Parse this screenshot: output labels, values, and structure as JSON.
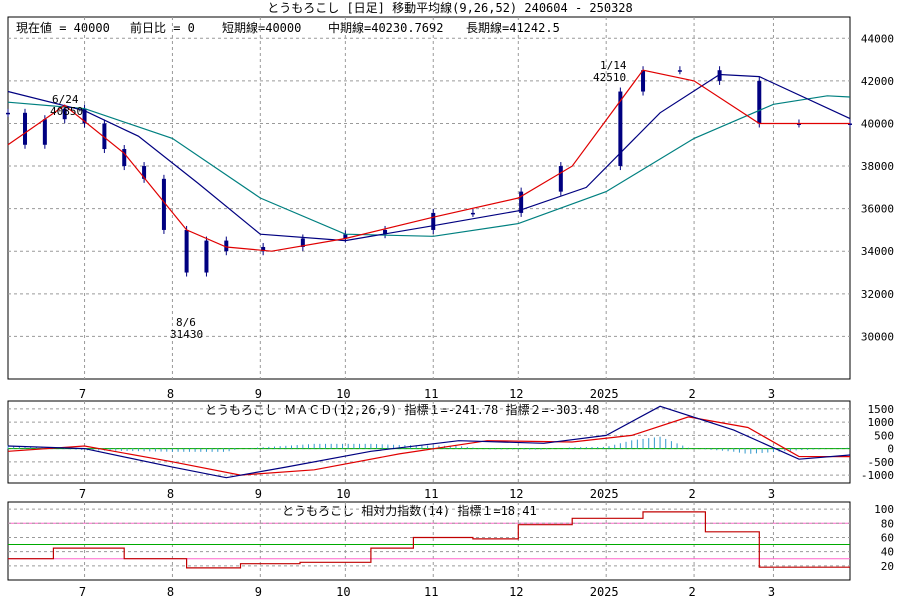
{
  "title": "とうもろこし [日足]  移動平均線(9,26,52)  240604 - 250328",
  "info": {
    "current": "現在値 = 40000",
    "change": "前日比 = 0",
    "short": "短期線=40000",
    "mid": "中期線=40230.7692",
    "long": "長期線=41242.5"
  },
  "colors": {
    "candle": "#000080",
    "ma_short": "#e00000",
    "ma_mid": "#000080",
    "ma_long": "#008080",
    "macd": "#000080",
    "signal": "#e00000",
    "hist": "#3399cc",
    "rsi": "#c00000",
    "rsi_lines": [
      "#ff66cc",
      "#00aa00",
      "#ff66cc"
    ]
  },
  "x_ticks": [
    "7",
    "8",
    "9",
    "10",
    "11",
    "12",
    "2025",
    "2",
    "3"
  ],
  "annotations": {
    "a1_date": "6/24",
    "a1_val": "40850",
    "a2_date": "8/6",
    "a2_val": "31430",
    "a3_date": "1/14",
    "a3_val": "42510"
  },
  "macd_title": "とうもろこし   ＭＡＣＤ(12,26,9) 指標１=-241.78  指標２=-303.48",
  "rsi_title": "とうもろこし   相対力指数(14) 指標１=18.41",
  "chart_data": [
    {
      "type": "candlestick",
      "x_range": [
        "2024-06-04",
        "2025-03-28"
      ],
      "ylim": [
        28000,
        45000
      ],
      "y_ticks": [
        30000,
        32000,
        34000,
        36000,
        38000,
        40000,
        42000,
        44000
      ],
      "series": [
        {
          "name": "close",
          "x": [
            "2024-06-04",
            "2024-06-10",
            "2024-06-17",
            "2024-06-24",
            "2024-07-01",
            "2024-07-08",
            "2024-07-15",
            "2024-07-22",
            "2024-07-29",
            "2024-08-06",
            "2024-08-13",
            "2024-08-20",
            "2024-09-02",
            "2024-09-16",
            "2024-10-01",
            "2024-10-15",
            "2024-11-01",
            "2024-11-15",
            "2024-12-02",
            "2024-12-16",
            "2025-01-06",
            "2025-01-14",
            "2025-01-27",
            "2025-02-10",
            "2025-02-24",
            "2025-03-10",
            "2025-03-28"
          ],
          "values": [
            40500,
            39000,
            40200,
            40700,
            40000,
            38800,
            38000,
            37400,
            35000,
            33000,
            34500,
            34000,
            34200,
            34600,
            34800,
            35000,
            35800,
            35800,
            36800,
            38000,
            41500,
            42500,
            42500,
            42000,
            40000,
            40000,
            40000
          ]
        },
        {
          "name": "短期線",
          "x": [
            "2024-06-04",
            "2024-06-24",
            "2024-07-15",
            "2024-08-06",
            "2024-08-20",
            "2024-09-05",
            "2024-10-01",
            "2024-11-01",
            "2024-12-01",
            "2024-12-20",
            "2025-01-14",
            "2025-02-01",
            "2025-02-24",
            "2025-03-28"
          ],
          "values": [
            39000,
            40850,
            38600,
            35000,
            34200,
            34000,
            34600,
            35600,
            36500,
            38000,
            42500,
            42000,
            40000,
            40000
          ]
        },
        {
          "name": "中期線",
          "x": [
            "2024-06-04",
            "2024-07-01",
            "2024-07-20",
            "2024-08-10",
            "2024-09-01",
            "2024-10-01",
            "2024-11-01",
            "2024-12-01",
            "2024-12-25",
            "2025-01-20",
            "2025-02-10",
            "2025-02-24",
            "2025-03-28"
          ],
          "values": [
            41500,
            40600,
            39400,
            37200,
            34800,
            34500,
            35200,
            35900,
            37000,
            40500,
            42300,
            42200,
            40230
          ]
        },
        {
          "name": "長期線",
          "x": [
            "2024-06-04",
            "2024-07-01",
            "2024-08-01",
            "2024-09-01",
            "2024-10-01",
            "2024-11-01",
            "2024-12-01",
            "2025-01-01",
            "2025-02-01",
            "2025-03-01",
            "2025-03-20",
            "2025-03-28"
          ],
          "values": [
            41000,
            40700,
            39300,
            36500,
            34800,
            34700,
            35300,
            36800,
            39300,
            40900,
            41300,
            41242
          ]
        }
      ]
    },
    {
      "type": "line",
      "x_range": [
        "2024-06-04",
        "2025-03-28"
      ],
      "ylim": [
        -1300,
        1800
      ],
      "y_ticks": [
        1500,
        1000,
        500,
        0,
        -500,
        -1000
      ],
      "series": [
        {
          "name": "指標１",
          "x": [
            "2024-06-04",
            "2024-07-01",
            "2024-08-01",
            "2024-08-20",
            "2024-09-10",
            "2024-10-10",
            "2024-11-10",
            "2024-12-10",
            "2025-01-01",
            "2025-01-20",
            "2025-02-15",
            "2025-03-10",
            "2025-03-28"
          ],
          "values": [
            100,
            0,
            -700,
            -1100,
            -700,
            -100,
            300,
            200,
            500,
            1600,
            700,
            -400,
            -242
          ]
        },
        {
          "name": "指標２",
          "x": [
            "2024-06-04",
            "2024-07-01",
            "2024-08-01",
            "2024-08-25",
            "2024-09-20",
            "2024-10-20",
            "2024-11-20",
            "2024-12-20",
            "2025-01-10",
            "2025-01-30",
            "2025-02-20",
            "2025-03-10",
            "2025-03-28"
          ],
          "values": [
            -100,
            100,
            -500,
            -1000,
            -800,
            -200,
            300,
            250,
            500,
            1200,
            800,
            -300,
            -303
          ]
        }
      ]
    },
    {
      "type": "line",
      "x_range": [
        "2024-06-04",
        "2025-03-28"
      ],
      "ylim": [
        0,
        110
      ],
      "y_ticks": [
        100,
        80,
        60,
        40,
        20
      ],
      "series": [
        {
          "name": "指標１",
          "x": [
            "2024-06-04",
            "2024-06-20",
            "2024-07-15",
            "2024-08-06",
            "2024-08-25",
            "2024-09-15",
            "2024-10-10",
            "2024-10-25",
            "2024-11-15",
            "2024-12-01",
            "2024-12-20",
            "2025-01-14",
            "2025-02-05",
            "2025-02-24",
            "2025-03-28"
          ],
          "values": [
            30,
            45,
            30,
            17,
            23,
            25,
            45,
            60,
            58,
            78,
            87,
            96,
            68,
            18,
            18
          ]
        }
      ]
    }
  ]
}
